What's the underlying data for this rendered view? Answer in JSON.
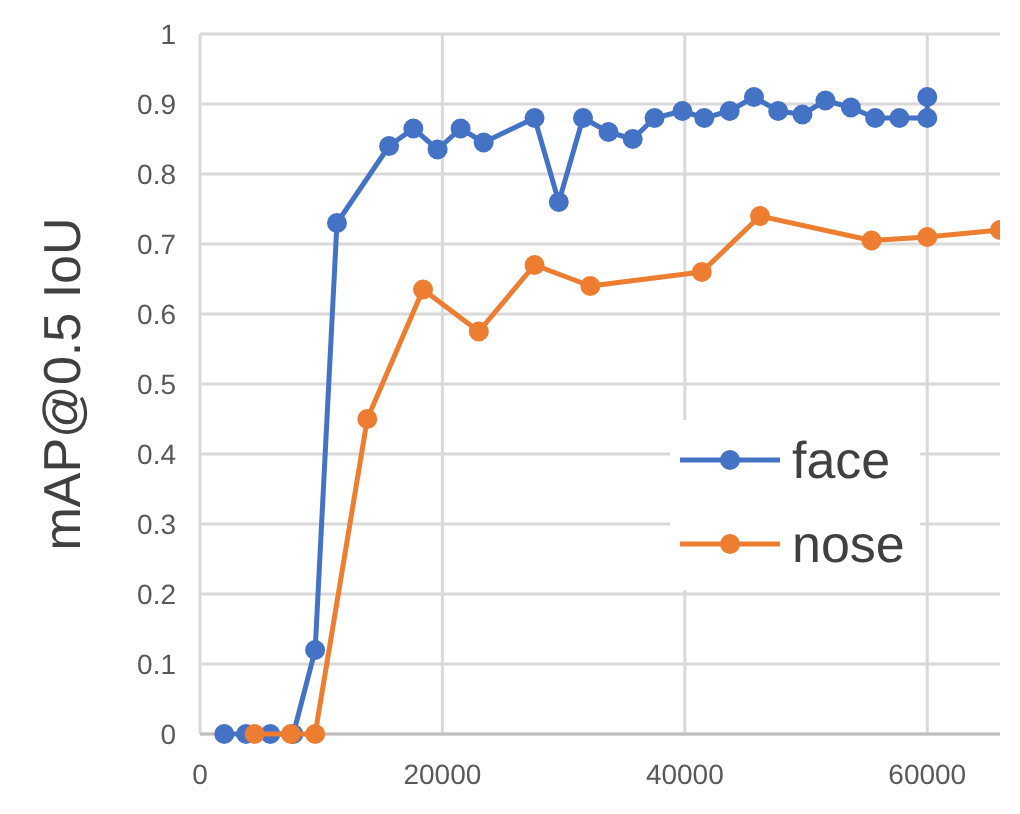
{
  "chart_data": {
    "type": "line",
    "ylabel": "mAP@0.5 IoU",
    "xlim": [
      0,
      66000
    ],
    "ylim": [
      0,
      1
    ],
    "xticks": [
      0,
      20000,
      40000,
      60000
    ],
    "yticks": [
      0,
      0.1,
      0.2,
      0.3,
      0.4,
      0.5,
      0.6,
      0.7,
      0.8,
      0.9,
      1
    ],
    "grid": true,
    "legend": "right",
    "marker": "circle",
    "line_style": "solid",
    "series": [
      {
        "name": "face",
        "color": "#4472c4",
        "x": [
          2000,
          3800,
          5800,
          7700,
          9500,
          11300,
          15600,
          17600,
          19600,
          21500,
          23400,
          27600,
          29600,
          31600,
          33700,
          35700,
          37500,
          39800,
          41600,
          43700,
          45700,
          47700,
          49700,
          51600,
          53700,
          55700,
          57700,
          60000,
          60000
        ],
        "values": [
          0,
          0,
          0,
          0,
          0.12,
          0.73,
          0.84,
          0.865,
          0.835,
          0.865,
          0.845,
          0.88,
          0.76,
          0.88,
          0.86,
          0.85,
          0.88,
          0.89,
          0.88,
          0.89,
          0.91,
          0.89,
          0.885,
          0.905,
          0.895,
          0.88,
          0.88,
          0.88,
          0.91
        ]
      },
      {
        "name": "nose",
        "color": "#ed7d31",
        "x": [
          4500,
          7500,
          9500,
          13800,
          18400,
          23000,
          27600,
          32200,
          41400,
          46200,
          55400,
          60000,
          66000
        ],
        "values": [
          0,
          0,
          0,
          0.45,
          0.635,
          0.575,
          0.67,
          0.64,
          0.66,
          0.74,
          0.705,
          0.71,
          0.72
        ]
      }
    ]
  }
}
